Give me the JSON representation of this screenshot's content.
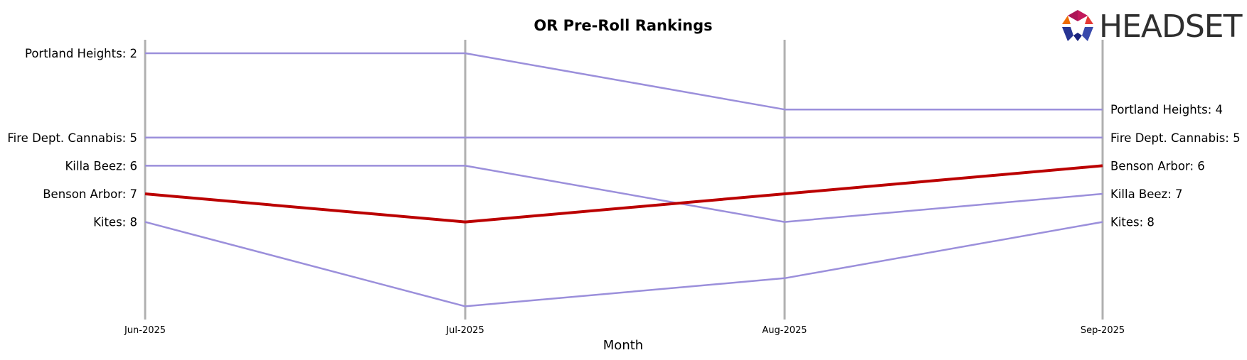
{
  "chart_data": {
    "type": "line",
    "title": "OR Pre-Roll Rankings",
    "xlabel": "Month",
    "ylabel": "",
    "categories": [
      "Jun-2025",
      "Jul-2025",
      "Aug-2025",
      "Sep-2025"
    ],
    "y_inverted": true,
    "ylim": [
      10.5,
      1.5
    ],
    "grid": false,
    "series": [
      {
        "name": "Portland Heights",
        "values": [
          2,
          2,
          4,
          4
        ],
        "color": "#9b8fdb",
        "highlight": false
      },
      {
        "name": "Fire Dept. Cannabis",
        "values": [
          5,
          5,
          5,
          5
        ],
        "color": "#9b8fdb",
        "highlight": false
      },
      {
        "name": "Killa Beez",
        "values": [
          6,
          6,
          8,
          7
        ],
        "color": "#9b8fdb",
        "highlight": false
      },
      {
        "name": "Benson Arbor",
        "values": [
          7,
          8,
          7,
          6
        ],
        "color": "#bb0000",
        "highlight": true
      },
      {
        "name": "Kites",
        "values": [
          8,
          11,
          10,
          8
        ],
        "color": "#9b8fdb",
        "highlight": false
      }
    ],
    "start_labels": [
      "Portland Heights: 2",
      "Fire Dept. Cannabis: 5",
      "Killa Beez: 6",
      "Benson Arbor: 7",
      "Kites: 8"
    ],
    "end_labels": [
      "Portland Heights: 4",
      "Fire Dept. Cannabis: 5",
      "Benson Arbor: 6",
      "Killa Beez: 7",
      "Kites: 8"
    ]
  },
  "logo": {
    "text": "HEADSET",
    "icon": "headset-hexagon-icon"
  },
  "colors": {
    "highlight": "#bb0000",
    "series": "#9b8fdb",
    "vertical_lines": "#b0b0b0"
  }
}
